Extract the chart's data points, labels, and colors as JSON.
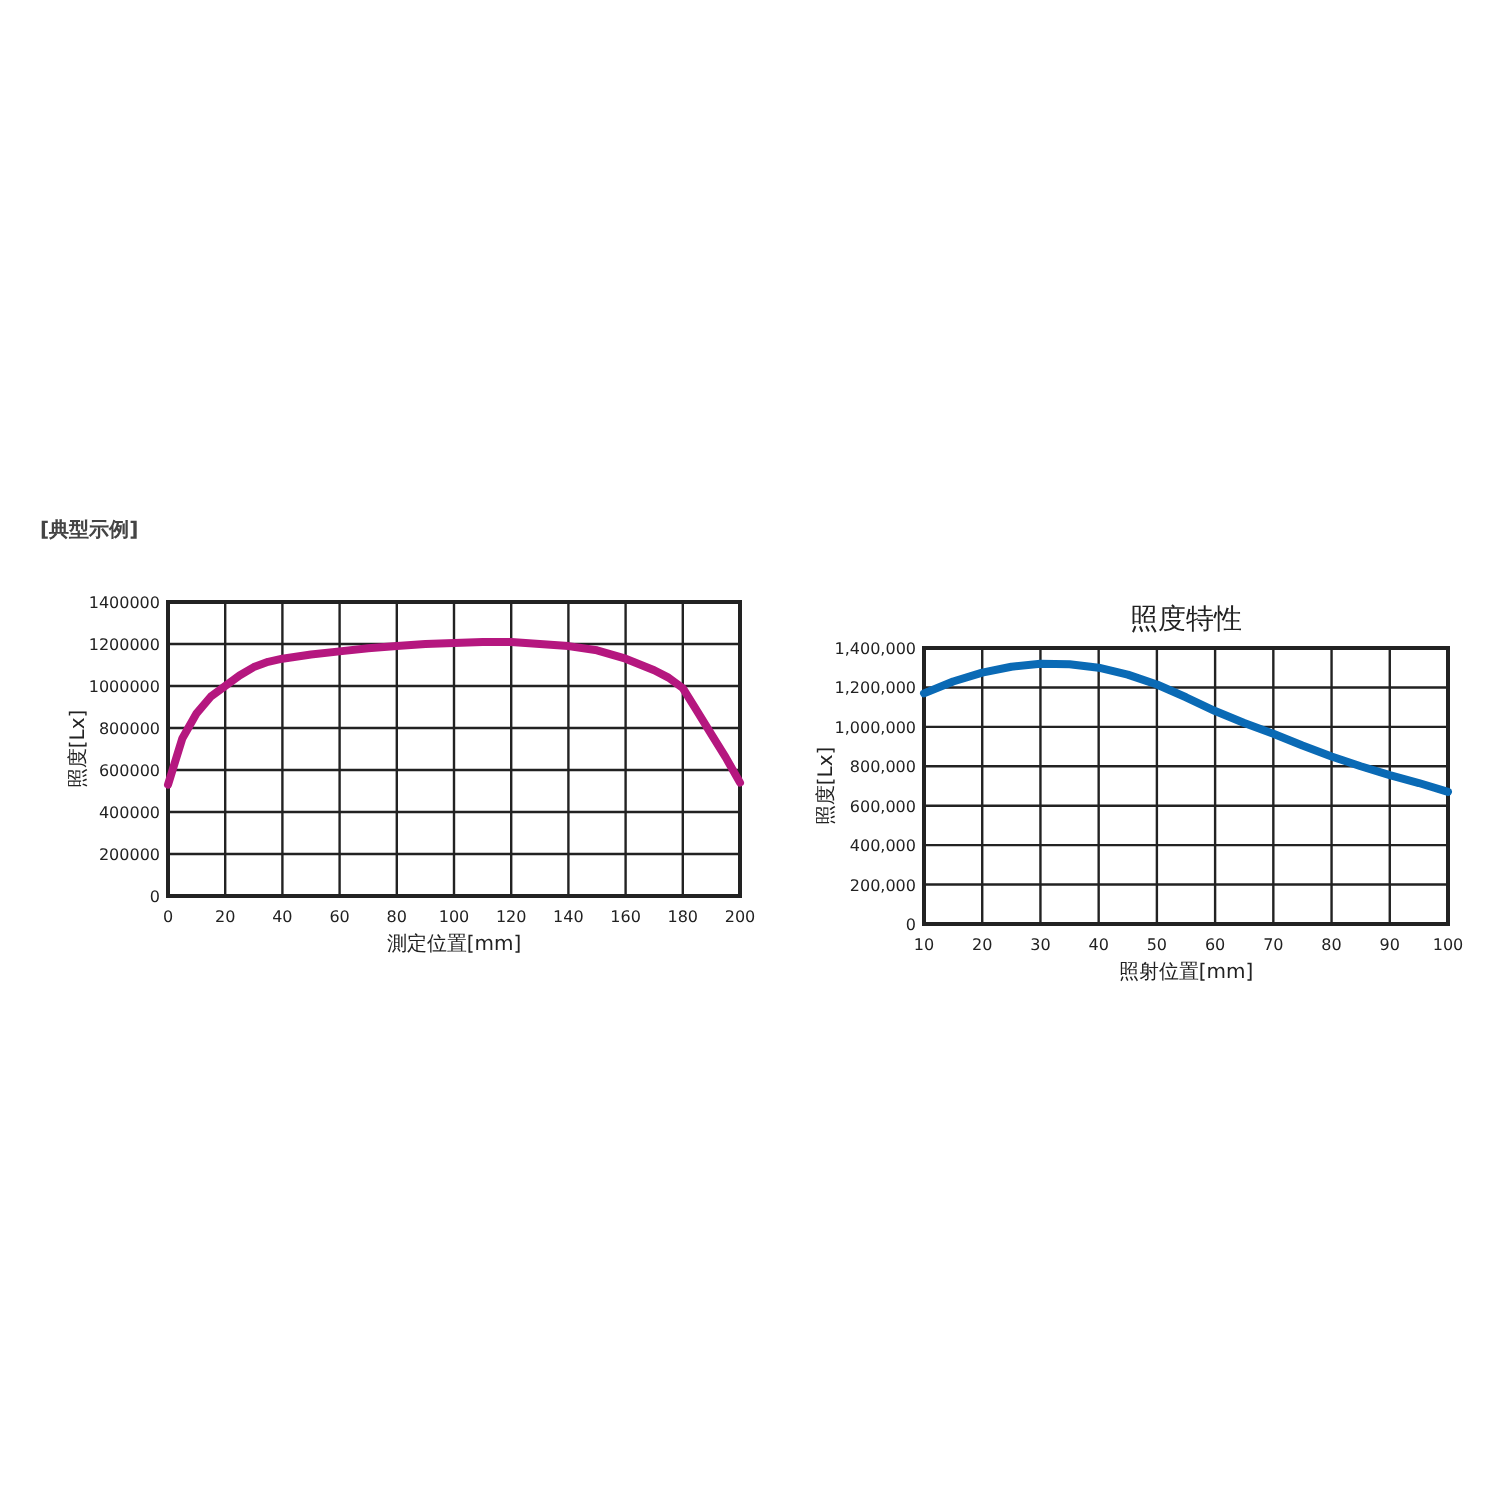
{
  "chart_data": [
    {
      "type": "line",
      "title": "[典型示例]",
      "xlabel": "測定位置[mm]",
      "ylabel": "照度[Lx]",
      "grid": true,
      "x": [
        0,
        5,
        10,
        15,
        20,
        25,
        30,
        35,
        40,
        50,
        60,
        70,
        80,
        90,
        100,
        110,
        120,
        130,
        140,
        150,
        160,
        170,
        175,
        180,
        185,
        190,
        195,
        200
      ],
      "series": [
        {
          "color": "#b5177f",
          "values": [
            530000,
            750000,
            870000,
            950000,
            1000000,
            1050000,
            1090000,
            1115000,
            1130000,
            1150000,
            1165000,
            1180000,
            1190000,
            1200000,
            1205000,
            1210000,
            1210000,
            1200000,
            1190000,
            1170000,
            1130000,
            1075000,
            1040000,
            990000,
            880000,
            770000,
            660000,
            540000
          ]
        }
      ],
      "xlim": [
        0,
        200
      ],
      "xticks": [
        0,
        20,
        40,
        60,
        80,
        100,
        120,
        140,
        160,
        180,
        200
      ],
      "ylim": [
        0,
        1400000
      ],
      "yticks": [
        0,
        200000,
        400000,
        600000,
        800000,
        1000000,
        1200000,
        1400000
      ]
    },
    {
      "type": "line",
      "title": "照度特性",
      "xlabel": "照射位置[mm]",
      "ylabel": "照度[Lx]",
      "grid": true,
      "x": [
        10,
        15,
        20,
        25,
        30,
        35,
        40,
        45,
        50,
        55,
        60,
        65,
        70,
        75,
        80,
        85,
        90,
        95,
        100
      ],
      "series": [
        {
          "color": "#0a6ab5",
          "values": [
            1170000,
            1230000,
            1275000,
            1305000,
            1320000,
            1318000,
            1300000,
            1265000,
            1215000,
            1150000,
            1080000,
            1020000,
            965000,
            905000,
            850000,
            800000,
            755000,
            715000,
            670000
          ]
        }
      ],
      "xlim": [
        10,
        100
      ],
      "xticks": [
        10,
        20,
        30,
        40,
        50,
        60,
        70,
        80,
        90,
        100
      ],
      "ylim": [
        0,
        1400000
      ],
      "yticks": [
        0,
        {
          "value": 200000,
          "label": "200,000"
        },
        {
          "value": 400000,
          "label": "400,000"
        },
        {
          "value": 600000,
          "label": "600,000"
        },
        {
          "value": 800000,
          "label": "800,000"
        },
        {
          "value": 1000000,
          "label": "1,000,000"
        },
        {
          "value": 1200000,
          "label": "1,200,000"
        },
        {
          "value": 1400000,
          "label": "1,400,000"
        }
      ]
    }
  ]
}
